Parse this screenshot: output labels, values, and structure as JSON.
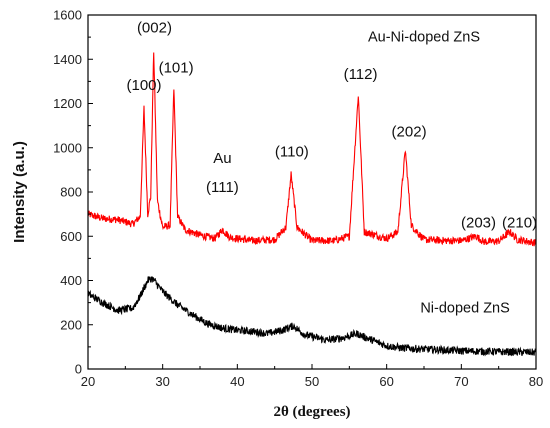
{
  "chart_data": {
    "type": "line",
    "xlabel": "2θ  (degrees)",
    "ylabel": "Intensity (a.u.)",
    "xlim": [
      20,
      80
    ],
    "ylim": [
      0,
      1600
    ],
    "x_ticks": [
      20,
      30,
      40,
      50,
      60,
      70,
      80
    ],
    "y_ticks": [
      0,
      200,
      400,
      600,
      800,
      1000,
      1200,
      1400,
      1600
    ],
    "grid": false,
    "series": [
      {
        "name": "Au-Ni-doped ZnS",
        "color": "#ff0000",
        "points": [
          [
            20,
            700
          ],
          [
            22,
            680
          ],
          [
            24,
            675
          ],
          [
            26,
            655
          ],
          [
            27,
            690
          ],
          [
            27.5,
            1180
          ],
          [
            28,
            700
          ],
          [
            28.4,
            780
          ],
          [
            28.8,
            1440
          ],
          [
            29.3,
            760
          ],
          [
            30,
            640
          ],
          [
            31,
            650
          ],
          [
            31.5,
            1270
          ],
          [
            32,
            690
          ],
          [
            33,
            630
          ],
          [
            35,
            605
          ],
          [
            37,
            590
          ],
          [
            38,
            630
          ],
          [
            39,
            595
          ],
          [
            42,
            580
          ],
          [
            45,
            585
          ],
          [
            46.5,
            640
          ],
          [
            47.2,
            880
          ],
          [
            48,
            640
          ],
          [
            50,
            580
          ],
          [
            53,
            580
          ],
          [
            55,
            600
          ],
          [
            56.2,
            1240
          ],
          [
            57,
            620
          ],
          [
            60,
            590
          ],
          [
            61.5,
            620
          ],
          [
            62.5,
            990
          ],
          [
            63.3,
            650
          ],
          [
            65,
            585
          ],
          [
            68,
            580
          ],
          [
            70,
            580
          ],
          [
            72,
            600
          ],
          [
            73,
            575
          ],
          [
            75,
            578
          ],
          [
            76.5,
            620
          ],
          [
            77.5,
            585
          ],
          [
            80,
            570
          ]
        ]
      },
      {
        "name": "Ni-doped ZnS",
        "color": "#000000",
        "points": [
          [
            20,
            340
          ],
          [
            22,
            300
          ],
          [
            24,
            265
          ],
          [
            26,
            275
          ],
          [
            27,
            330
          ],
          [
            28,
            400
          ],
          [
            28.5,
            410
          ],
          [
            29,
            395
          ],
          [
            30,
            350
          ],
          [
            32,
            290
          ],
          [
            34,
            245
          ],
          [
            36,
            205
          ],
          [
            38,
            185
          ],
          [
            40,
            175
          ],
          [
            42,
            170
          ],
          [
            44,
            160
          ],
          [
            46,
            175
          ],
          [
            47.5,
            195
          ],
          [
            49,
            155
          ],
          [
            52,
            130
          ],
          [
            54,
            140
          ],
          [
            56,
            160
          ],
          [
            57,
            145
          ],
          [
            60,
            105
          ],
          [
            62,
            95
          ],
          [
            65,
            90
          ],
          [
            70,
            82
          ],
          [
            75,
            78
          ],
          [
            80,
            75
          ]
        ]
      }
    ],
    "legend": [
      "Au-Ni-doped ZnS",
      "Ni-doped ZnS"
    ],
    "annotations": [
      {
        "text": "(100)",
        "x": 27.5,
        "y": 1260
      },
      {
        "text": "(002)",
        "x": 28.9,
        "y": 1520
      },
      {
        "text": "(101)",
        "x": 31.8,
        "y": 1340
      },
      {
        "text": "Au",
        "x": 38,
        "y": 930
      },
      {
        "text": "(111)",
        "x": 38,
        "y": 800
      },
      {
        "text": "(110)",
        "x": 47.3,
        "y": 960
      },
      {
        "text": "(112)",
        "x": 56.5,
        "y": 1310
      },
      {
        "text": "(202)",
        "x": 63,
        "y": 1050
      },
      {
        "text": "(203)",
        "x": 72.3,
        "y": 640
      },
      {
        "text": "(210)",
        "x": 77.8,
        "y": 640
      }
    ]
  }
}
